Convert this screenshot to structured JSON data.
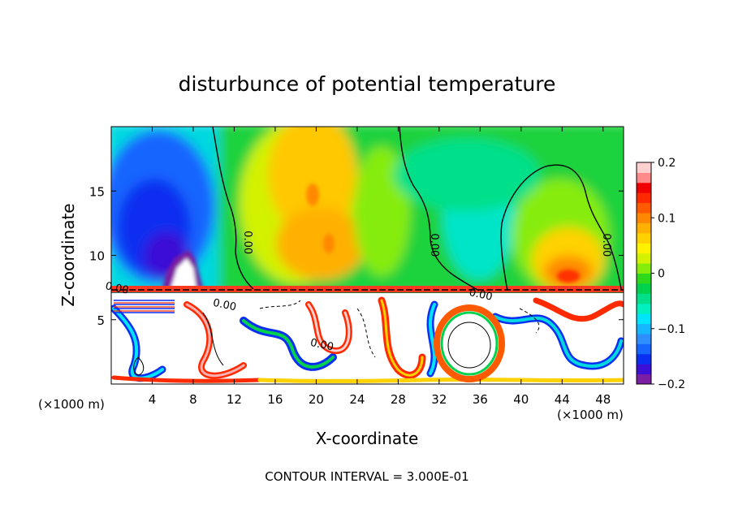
{
  "chart_data": {
    "type": "heatmap",
    "title": "disturbunce of potential temperature",
    "xlabel": "X-coordinate",
    "ylabel": "Z-coordinate",
    "x_unit": "(×1000 m)",
    "x_unit_right": "(×1000 m)",
    "footer": "CONTOUR INTERVAL = 3.000E-01",
    "xlim": [
      0,
      50
    ],
    "ylim": [
      0,
      20
    ],
    "x_ticks": [
      4,
      8,
      12,
      16,
      20,
      24,
      28,
      32,
      36,
      40,
      44,
      48
    ],
    "y_ticks": [
      5,
      10,
      15
    ],
    "colorbar": {
      "min": -0.2,
      "max": 0.2,
      "tick_values": [
        -0.2,
        -0.1,
        0,
        0.1,
        0.2
      ],
      "tick_labels": [
        "−0.2",
        "−0.1",
        "0",
        "0.1",
        "0.2"
      ],
      "colors": [
        "#7b1fa2",
        "#3b0fd6",
        "#0a2ff0",
        "#1565ff",
        "#2f8fff",
        "#15b7ff",
        "#00e5ff",
        "#00f0c0",
        "#00e08a",
        "#00d24e",
        "#2ed81a",
        "#86ec0c",
        "#d2f200",
        "#fff200",
        "#ffd200",
        "#ffb000",
        "#ff8800",
        "#ff5a00",
        "#ff2a00",
        "#f00000",
        "#ff8a8a",
        "#ffd0d0"
      ]
    },
    "contour_labels": [
      {
        "text": "0.00",
        "x": 13.0,
        "z": 11.0
      },
      {
        "text": "0.00",
        "x": 31.2,
        "z": 10.8
      },
      {
        "text": "0.00",
        "x": 48.0,
        "z": 10.8
      },
      {
        "text": "0.00",
        "x": 11.0,
        "z": 5.9
      },
      {
        "text": "0.00",
        "x": 36.0,
        "z": 6.7
      },
      {
        "text": "0.00",
        "x": 0.5,
        "z": 7.2
      },
      {
        "text": "0.00",
        "x": 20.5,
        "z": 2.8
      }
    ]
  }
}
